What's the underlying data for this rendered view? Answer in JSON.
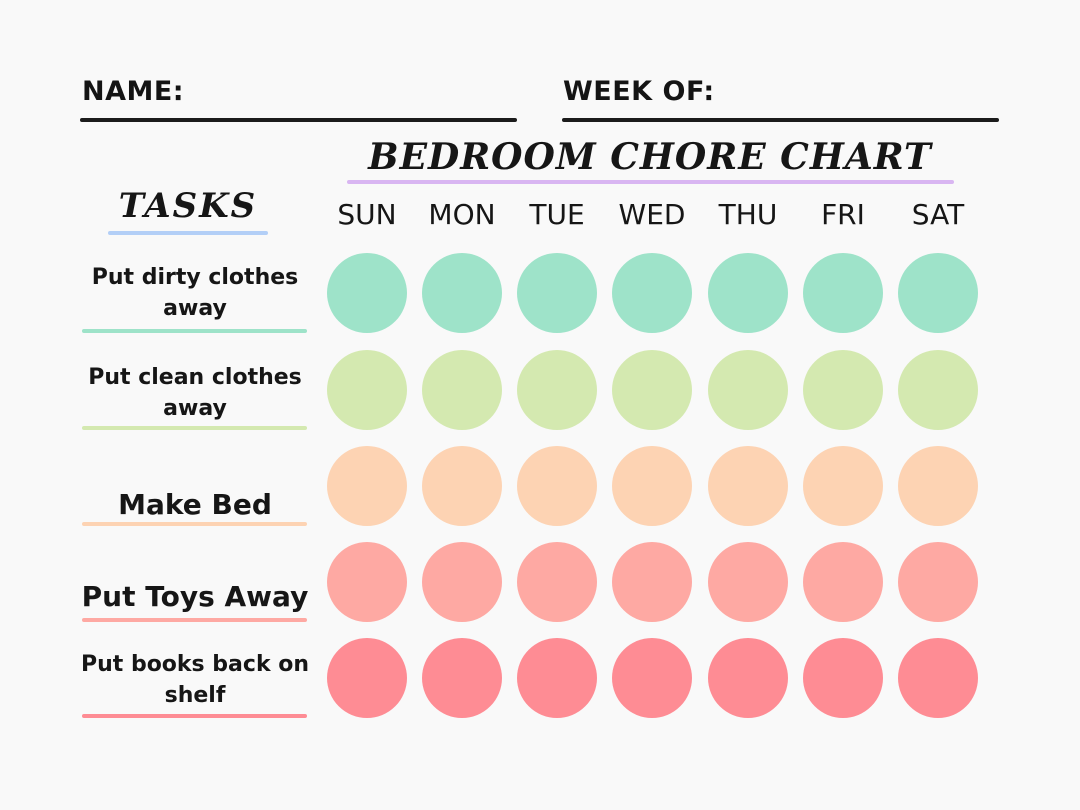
{
  "header": {
    "name_label": "NAME:",
    "week_label": "WEEK OF:"
  },
  "title": "BEDROOM CHORE CHART",
  "tasks_heading": "TASKS",
  "days": [
    "SUN",
    "MON",
    "TUE",
    "WED",
    "THU",
    "FRI",
    "SAT"
  ],
  "tasks": [
    {
      "lines": [
        "Put dirty clothes",
        "away"
      ],
      "color": "#9ee3c9"
    },
    {
      "lines": [
        "Put clean clothes",
        "away"
      ],
      "color": "#d4e9b0"
    },
    {
      "lines": [
        "Make Bed"
      ],
      "color": "#fdd3b3"
    },
    {
      "lines": [
        "Put Toys Away"
      ],
      "color": "#fea9a3"
    },
    {
      "lines": [
        "Put books back on",
        "shelf"
      ],
      "color": "#fe8c94"
    }
  ],
  "accents": {
    "title_underline": "#d9b6f2",
    "tasks_underline": "#b3cff7"
  }
}
